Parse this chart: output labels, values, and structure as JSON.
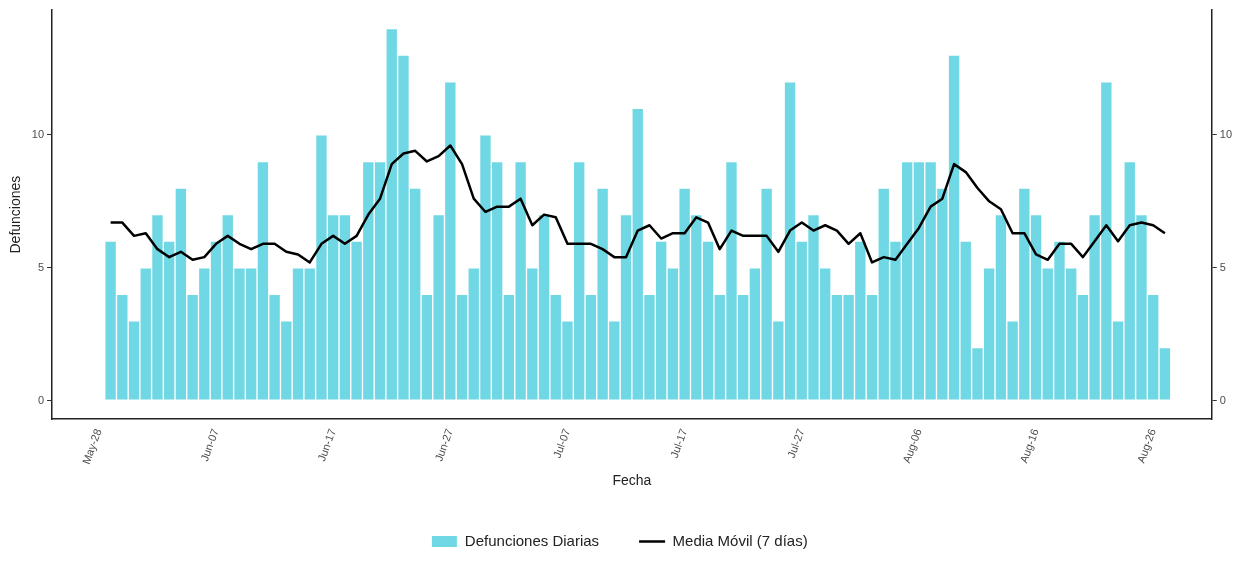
{
  "chart_data": {
    "type": "bar",
    "xlabel": "Fecha",
    "ylabel": "Defunciones",
    "x": [
      "--05-29",
      "--05-30",
      "--05-31",
      "--06-01",
      "--06-02",
      "--06-03",
      "--06-04",
      "--06-05",
      "--06-06",
      "--06-07",
      "--06-08",
      "--06-09",
      "--06-10",
      "--06-11",
      "--06-12",
      "--06-13",
      "--06-14",
      "--06-15",
      "--06-16",
      "--06-17",
      "--06-18",
      "--06-19",
      "--06-20",
      "--06-21",
      "--06-22",
      "--06-23",
      "--06-24",
      "--06-25",
      "--06-26",
      "--06-27",
      "--06-28",
      "--06-29",
      "--06-30",
      "--07-01",
      "--07-02",
      "--07-03",
      "--07-04",
      "--07-05",
      "--07-06",
      "--07-07",
      "--07-08",
      "--07-09",
      "--07-10",
      "--07-11",
      "--07-12",
      "--07-13",
      "--07-14",
      "--07-15",
      "--07-16",
      "--07-17",
      "--07-18",
      "--07-19",
      "--07-20",
      "--07-21",
      "--07-22",
      "--07-23",
      "--07-24",
      "--07-25",
      "--07-26",
      "--07-27",
      "--07-28",
      "--07-29",
      "--07-30",
      "--07-31",
      "--08-01",
      "--08-02",
      "--08-03",
      "--08-04",
      "--08-05",
      "--08-06",
      "--08-07",
      "--08-08",
      "--08-09",
      "--08-10",
      "--08-11",
      "--08-12",
      "--08-13",
      "--08-14",
      "--08-15",
      "--08-16",
      "--08-17",
      "--08-18",
      "--08-19",
      "--08-20",
      "--08-21",
      "--08-22",
      "--08-23",
      "--08-24",
      "--08-25",
      "--08-26",
      "--08-27"
    ],
    "series": [
      {
        "name": "Defunciones Diarias",
        "color": "#70d8e4",
        "values": [
          6,
          4,
          3,
          5,
          7,
          6,
          8,
          4,
          5,
          6,
          7,
          5,
          5,
          9,
          4,
          3,
          5,
          5,
          10,
          7,
          7,
          6,
          9,
          9,
          14,
          13,
          8,
          4,
          7,
          12,
          4,
          5,
          10,
          9,
          4,
          9,
          5,
          7,
          4,
          3,
          9,
          4,
          8,
          3,
          7,
          11,
          4,
          6,
          5,
          8,
          7,
          6,
          4,
          9,
          4,
          5,
          8,
          3,
          12,
          6,
          7,
          5,
          4,
          4,
          6,
          4,
          8,
          6,
          9,
          9,
          9,
          8,
          13,
          6,
          2,
          5,
          7,
          3,
          8,
          7,
          5,
          6,
          5,
          4,
          7,
          12,
          3,
          9,
          7,
          4,
          2
        ]
      },
      {
        "name": "Media Móvil (7 días)",
        "type": "line",
        "color": "#000000",
        "values": [
          6.7,
          6.7,
          6.2,
          6.3,
          5.7,
          5.4,
          5.6,
          5.3,
          5.4,
          5.9,
          6.2,
          5.9,
          5.7,
          5.9,
          5.9,
          5.6,
          5.5,
          5.2,
          5.9,
          6.2,
          5.9,
          6.2,
          7.0,
          7.6,
          8.9,
          9.3,
          9.4,
          9.0,
          9.2,
          9.6,
          8.9,
          7.6,
          7.1,
          7.3,
          7.3,
          7.6,
          6.6,
          7.0,
          6.9,
          5.9,
          5.9,
          5.9,
          5.7,
          5.4,
          5.4,
          6.4,
          6.6,
          6.1,
          6.3,
          6.3,
          6.9,
          6.7,
          5.7,
          6.4,
          6.2,
          6.2,
          6.2,
          5.6,
          6.4,
          6.7,
          6.4,
          6.6,
          6.4,
          5.9,
          6.3,
          5.2,
          5.4,
          5.3,
          5.9,
          6.5,
          7.3,
          7.6,
          8.9,
          8.6,
          8.0,
          7.5,
          7.2,
          6.3,
          6.3,
          5.5,
          5.3,
          5.9,
          5.9,
          5.4,
          6.0,
          6.6,
          6.0,
          6.6,
          6.7,
          6.6,
          6.3
        ]
      }
    ],
    "xlim": [
      "--05-24",
      "--08-31"
    ],
    "xticks": [
      {
        "value": "--05-28",
        "label": "May-28"
      },
      {
        "value": "--06-07",
        "label": "Jun-07"
      },
      {
        "value": "--06-17",
        "label": "Jun-17"
      },
      {
        "value": "--06-27",
        "label": "Jun-27"
      },
      {
        "value": "--07-07",
        "label": "Jul-07"
      },
      {
        "value": "--07-17",
        "label": "Jul-17"
      },
      {
        "value": "--07-27",
        "label": "Jul-27"
      },
      {
        "value": "--08-06",
        "label": "Aug-06"
      },
      {
        "value": "--08-16",
        "label": "Aug-16"
      },
      {
        "value": "--08-26",
        "label": "Aug-26"
      }
    ],
    "ylim": [
      -0.7,
      14.7
    ],
    "yticks": [
      0,
      5,
      10
    ],
    "y2lim": [
      -0.7,
      14.7
    ],
    "y2ticks": [
      0,
      5,
      10
    ],
    "grid": false,
    "legend": "bottom",
    "marker": "none",
    "line_style": "solid"
  }
}
